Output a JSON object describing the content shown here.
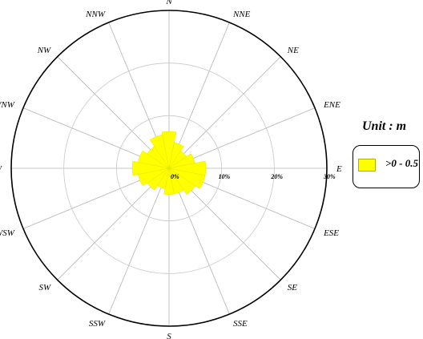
{
  "chart_data": {
    "type": "polar-bar",
    "directions": [
      "N",
      "NNE",
      "NE",
      "ENE",
      "E",
      "ESE",
      "SE",
      "SSE",
      "S",
      "SSW",
      "SW",
      "WSW",
      "W",
      "WNW",
      "NW",
      "NNW"
    ],
    "series": [
      {
        "name": ">0 - 0.5",
        "color": "#ffff00",
        "values": [
          7,
          5,
          4,
          5,
          7,
          7,
          6,
          5,
          5,
          4,
          5,
          6,
          7,
          6,
          5,
          6.5
        ]
      }
    ],
    "radial_max": 30,
    "radial_ticks": [
      0,
      10,
      20,
      30
    ],
    "radial_tick_labels": [
      "0%",
      "10%",
      "20%",
      "30%"
    ],
    "grid": true
  },
  "legend": {
    "title": "Unit : m",
    "entries": [
      {
        "label": ">0 - 0.5",
        "color": "#ffff00"
      }
    ]
  }
}
